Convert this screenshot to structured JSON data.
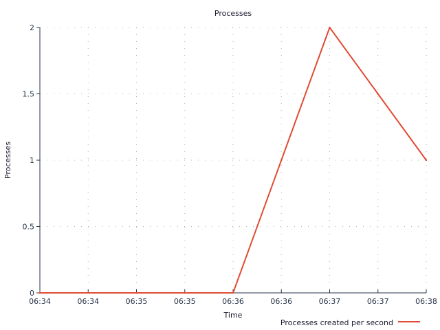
{
  "chart_data": {
    "type": "line",
    "title": "Processes",
    "xlabel": "Time",
    "ylabel": "Processes",
    "x_tick_labels": [
      "06:34",
      "06:34",
      "06:35",
      "06:35",
      "06:36",
      "06:36",
      "06:37",
      "06:37",
      "06:38"
    ],
    "y_tick_labels": [
      "0",
      "0.5",
      "1",
      "1.5",
      "2"
    ],
    "y_ticks": [
      0,
      0.5,
      1,
      1.5,
      2
    ],
    "ylim": [
      0,
      2
    ],
    "grid": true,
    "legend_position": "bottom-right",
    "series": [
      {
        "name": "Processes created per second",
        "color": "#e24a33",
        "values": [
          0,
          0,
          0,
          0,
          0,
          1,
          2,
          1.5,
          1
        ]
      }
    ]
  }
}
